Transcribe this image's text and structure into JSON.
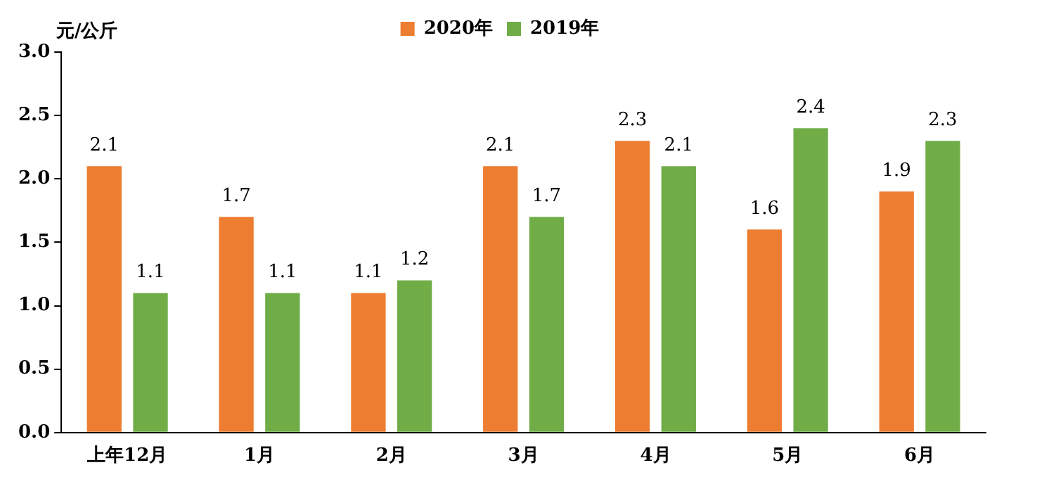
{
  "chart_data": {
    "type": "bar",
    "categories": [
      "上年12月",
      "1月",
      "2月",
      "3月",
      "4月",
      "5月",
      "6月"
    ],
    "series": [
      {
        "name": "2020年",
        "color": "#ed7d31",
        "values": [
          2.1,
          1.7,
          1.1,
          2.1,
          2.3,
          1.6,
          1.9
        ]
      },
      {
        "name": "2019年",
        "color": "#70ad47",
        "values": [
          1.1,
          1.1,
          1.2,
          1.7,
          2.1,
          2.4,
          2.3
        ]
      }
    ],
    "ylabel": "元/公斤",
    "ylim": [
      0,
      3
    ],
    "yticks": [
      {
        "value": 0,
        "label": "0.0"
      },
      {
        "value": 0.5,
        "label": "0.5"
      },
      {
        "value": 1,
        "label": "1.0"
      },
      {
        "value": 1.5,
        "label": "1.5"
      },
      {
        "value": 2,
        "label": "2.0"
      },
      {
        "value": 2.5,
        "label": "2.5"
      },
      {
        "value": 3,
        "label": "3.0"
      }
    ],
    "grid": false,
    "legend": "top",
    "data_labels": true
  }
}
